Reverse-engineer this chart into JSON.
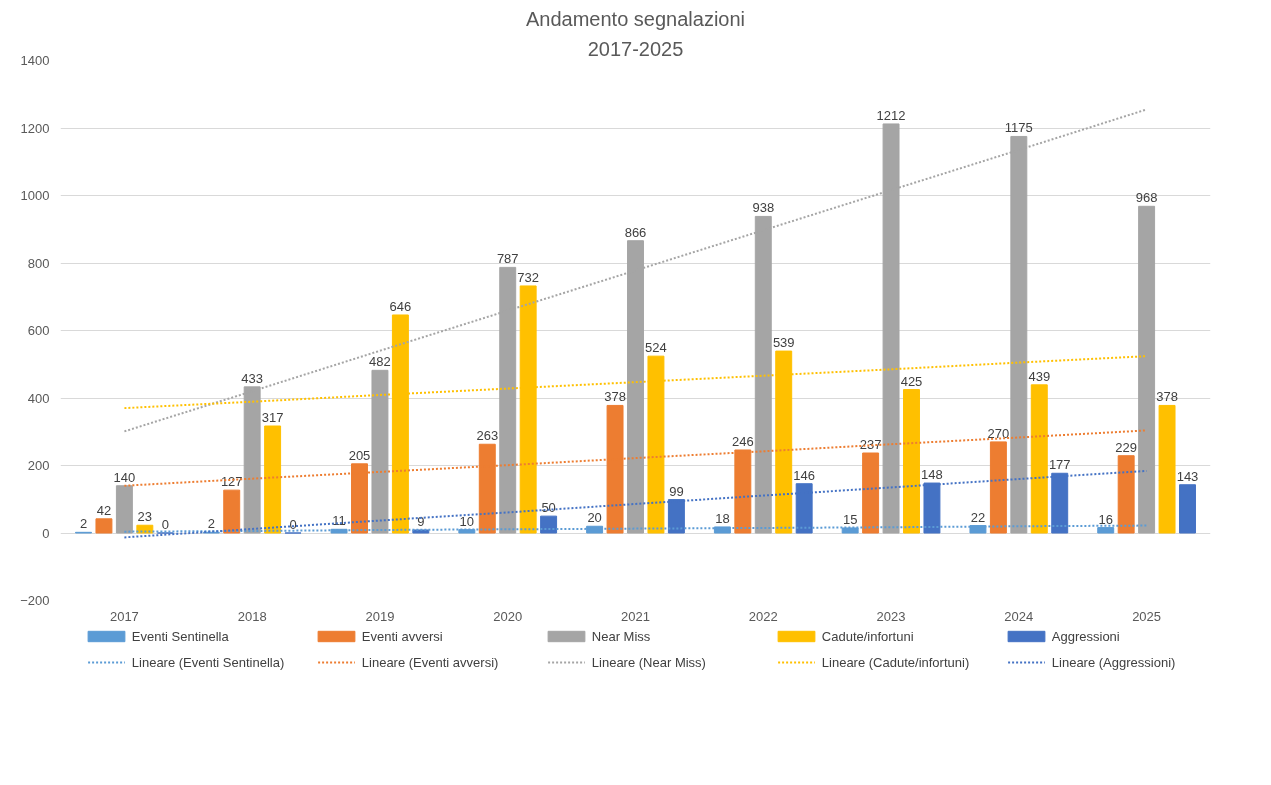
{
  "chart_data": {
    "type": "bar",
    "title": "Andamento segnalazioni",
    "subtitle": "2017-2025",
    "categories": [
      "2017",
      "2018",
      "2019",
      "2020",
      "2021",
      "2022",
      "2023",
      "2024",
      "2025"
    ],
    "series": [
      {
        "name": "Eventi Sentinella",
        "color": "#5b9bd5",
        "data_labels": true,
        "values": [
          2,
          2,
          11,
          10,
          20,
          18,
          15,
          22,
          16
        ]
      },
      {
        "name": "Eventi avversi",
        "color": "#ed7d31",
        "data_labels": true,
        "values": [
          42,
          127,
          205,
          263,
          378,
          246,
          237,
          270,
          229
        ]
      },
      {
        "name": "Near Miss",
        "color": "#a5a5a5",
        "data_labels": true,
        "values": [
          140,
          433,
          482,
          787,
          866,
          938,
          1212,
          1175,
          968
        ]
      },
      {
        "name": "Cadute/infortuni",
        "color": "#ffc000",
        "data_labels": true,
        "values": [
          23,
          317,
          646,
          732,
          524,
          539,
          425,
          439,
          378
        ]
      },
      {
        "name": "Aggressioni",
        "color": "#4472c4",
        "data_labels": true,
        "values": [
          0,
          0,
          9,
          50,
          99,
          146,
          148,
          177,
          143
        ]
      },
      {
        "name": "Lineare (Eventi Sentinella)",
        "type": "line",
        "line_style": "dotted",
        "color": "#5b9bd5",
        "values": [
          4,
          6,
          9,
          11,
          13,
          15,
          17,
          20,
          22
        ]
      },
      {
        "name": "Lineare (Eventi avversi)",
        "type": "line",
        "line_style": "dotted",
        "color": "#ed7d31",
        "values": [
          140,
          161,
          181,
          201,
          222,
          242,
          263,
          283,
          304
        ]
      },
      {
        "name": "Lineare (Near Miss)",
        "type": "line",
        "line_style": "dotted",
        "color": "#a5a5a5",
        "values": [
          301,
          420,
          540,
          659,
          778,
          897,
          1016,
          1135,
          1255
        ]
      },
      {
        "name": "Lineare (Cadute/infortuni)",
        "type": "line",
        "line_style": "dotted",
        "color": "#ffc000",
        "values": [
          370,
          389,
          409,
          428,
          447,
          466,
          485,
          505,
          524
        ]
      },
      {
        "name": "Lineare (Aggressioni)",
        "type": "line",
        "line_style": "dotted",
        "color": "#4472c4",
        "values": [
          -13,
          12,
          37,
          61,
          86,
          111,
          135,
          160,
          184
        ]
      }
    ],
    "ylim": [
      -200,
      1400
    ],
    "yticks": [
      -200,
      0,
      200,
      400,
      600,
      800,
      1000,
      1200,
      1400
    ],
    "grid": "y",
    "legend": "bottom"
  }
}
